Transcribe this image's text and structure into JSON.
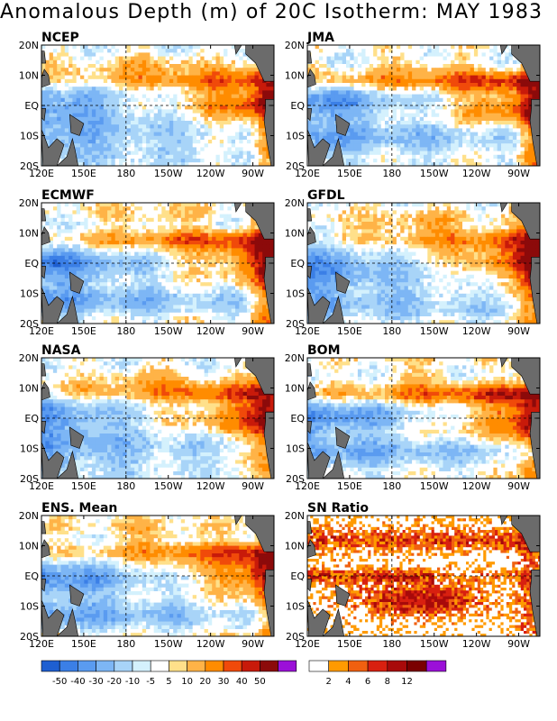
{
  "title": "Anomalous Depth (m) of 20C Isotherm: MAY 1983",
  "colors": {
    "anomaly_scale": [
      "#1e5fd1",
      "#3b7fe6",
      "#5a9bf0",
      "#7db6f5",
      "#a8d4f8",
      "#d4f1fd",
      "#ffffff",
      "#ffe08a",
      "#ffb347",
      "#ff8c00",
      "#f04a0a",
      "#c81a0a",
      "#8c0a0a",
      "#9b10d8"
    ],
    "sn_scale": [
      "#ffffff",
      "#ff9a00",
      "#f06010",
      "#d82010",
      "#a80a0a",
      "#7a0000",
      "#9b10d8"
    ],
    "land": "#6b6b6b"
  },
  "chart_data": [
    {
      "type": "heatmap",
      "title": "NCEP",
      "xlabel": "",
      "ylabel": "",
      "x_ticks": [
        "120E",
        "150E",
        "180",
        "150W",
        "120W",
        "90W"
      ],
      "y_ticks": [
        "20N",
        "10N",
        "EQ",
        "10S",
        "20S"
      ],
      "xlim": [
        "120E",
        "75W"
      ],
      "ylim": [
        "20S",
        "20N"
      ],
      "field": "anomalous depth of 20C isotherm (m)"
    },
    {
      "type": "heatmap",
      "title": "JMA",
      "xlabel": "",
      "ylabel": "",
      "x_ticks": [
        "120E",
        "150E",
        "180",
        "150W",
        "120W",
        "90W"
      ],
      "y_ticks": [
        "20N",
        "10N",
        "EQ",
        "10S",
        "20S"
      ],
      "xlim": [
        "120E",
        "75W"
      ],
      "ylim": [
        "20S",
        "20N"
      ],
      "field": "anomalous depth of 20C isotherm (m)"
    },
    {
      "type": "heatmap",
      "title": "ECMWF",
      "xlabel": "",
      "ylabel": "",
      "x_ticks": [
        "120E",
        "150E",
        "180",
        "150W",
        "120W",
        "90W"
      ],
      "y_ticks": [
        "20N",
        "10N",
        "EQ",
        "10S",
        "20S"
      ],
      "xlim": [
        "120E",
        "75W"
      ],
      "ylim": [
        "20S",
        "20N"
      ],
      "field": "anomalous depth of 20C isotherm (m)"
    },
    {
      "type": "heatmap",
      "title": "GFDL",
      "xlabel": "",
      "ylabel": "",
      "x_ticks": [
        "120E",
        "150E",
        "180",
        "150W",
        "120W",
        "90W"
      ],
      "y_ticks": [
        "20N",
        "10N",
        "EQ",
        "10S",
        "20S"
      ],
      "xlim": [
        "120E",
        "75W"
      ],
      "ylim": [
        "20S",
        "20N"
      ],
      "field": "anomalous depth of 20C isotherm (m)"
    },
    {
      "type": "heatmap",
      "title": "NASA",
      "xlabel": "",
      "ylabel": "",
      "x_ticks": [
        "120E",
        "150E",
        "180",
        "150W",
        "120W",
        "90W"
      ],
      "y_ticks": [
        "20N",
        "10N",
        "EQ",
        "10S",
        "20S"
      ],
      "xlim": [
        "120E",
        "75W"
      ],
      "ylim": [
        "20S",
        "20N"
      ],
      "field": "anomalous depth of 20C isotherm (m)"
    },
    {
      "type": "heatmap",
      "title": "BOM",
      "xlabel": "",
      "ylabel": "",
      "x_ticks": [
        "120E",
        "150E",
        "180",
        "150W",
        "120W",
        "90W"
      ],
      "y_ticks": [
        "20N",
        "10N",
        "EQ",
        "10S",
        "20S"
      ],
      "xlim": [
        "120E",
        "75W"
      ],
      "ylim": [
        "20S",
        "20N"
      ],
      "field": "anomalous depth of 20C isotherm (m)"
    },
    {
      "type": "heatmap",
      "title": "ENS. Mean",
      "xlabel": "",
      "ylabel": "",
      "x_ticks": [
        "120E",
        "150E",
        "180",
        "150W",
        "120W",
        "90W"
      ],
      "y_ticks": [
        "20N",
        "10N",
        "EQ",
        "10S",
        "20S"
      ],
      "xlim": [
        "120E",
        "75W"
      ],
      "ylim": [
        "20S",
        "20N"
      ],
      "field": "anomalous depth of 20C isotherm (m)"
    },
    {
      "type": "heatmap",
      "title": "SN Ratio",
      "xlabel": "",
      "ylabel": "",
      "x_ticks": [
        "120E",
        "150E",
        "180",
        "150W",
        "120W",
        "90W"
      ],
      "y_ticks": [
        "20N",
        "10N",
        "EQ",
        "10S",
        "20S"
      ],
      "xlim": [
        "120E",
        "75W"
      ],
      "ylim": [
        "20S",
        "20N"
      ],
      "field": "signal-to-noise ratio"
    }
  ],
  "legends": {
    "anomaly_labels": [
      "-50",
      "-40",
      "-30",
      "-20",
      "-10",
      "-5",
      "5",
      "10",
      "20",
      "30",
      "40",
      "50"
    ],
    "sn_labels": [
      "2",
      "4",
      "6",
      "8",
      "12"
    ]
  }
}
